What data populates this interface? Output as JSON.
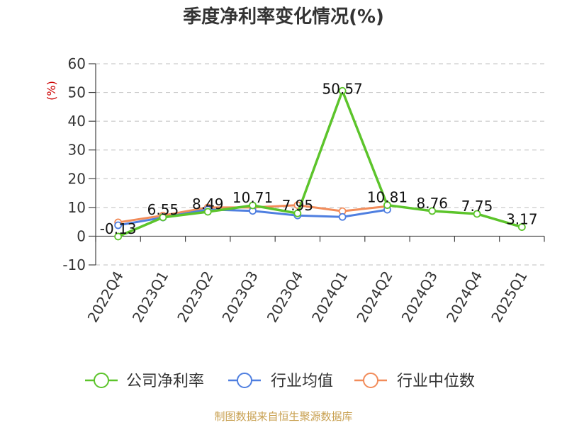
{
  "chart_data": {
    "type": "line",
    "title": "季度净利率变化情况(%)",
    "ylabel": "(%)",
    "ylim": [
      -10,
      60
    ],
    "yticks": [
      -10,
      0,
      10,
      20,
      30,
      40,
      50,
      60
    ],
    "grid": true,
    "legend_position": "bottom",
    "categories": [
      "2022Q4",
      "2023Q1",
      "2023Q2",
      "2023Q3",
      "2023Q4",
      "2024Q1",
      "2024Q2",
      "2024Q3",
      "2024Q4",
      "2025Q1"
    ],
    "series": [
      {
        "name": "公司净利率",
        "color": "#5cc42b",
        "values": [
          -0.13,
          6.55,
          8.49,
          10.71,
          7.95,
          50.57,
          10.81,
          8.76,
          7.75,
          3.17
        ],
        "labels": [
          "-0.13",
          "6.55",
          "8.49",
          "10.71",
          "7.95",
          "50.57",
          "10.81",
          "8.76",
          "7.75",
          "3.17"
        ]
      },
      {
        "name": "行业均值",
        "color": "#4f7fe0",
        "values": [
          3.8,
          6.5,
          9.3,
          8.8,
          7.2,
          6.7,
          9.2,
          null,
          null,
          null
        ]
      },
      {
        "name": "行业中位数",
        "color": "#f28c5a",
        "values": [
          4.8,
          7.2,
          10.0,
          10.0,
          10.8,
          8.7,
          10.4,
          null,
          null,
          null
        ]
      }
    ]
  },
  "source": "制图数据来自恒生聚源数据库"
}
